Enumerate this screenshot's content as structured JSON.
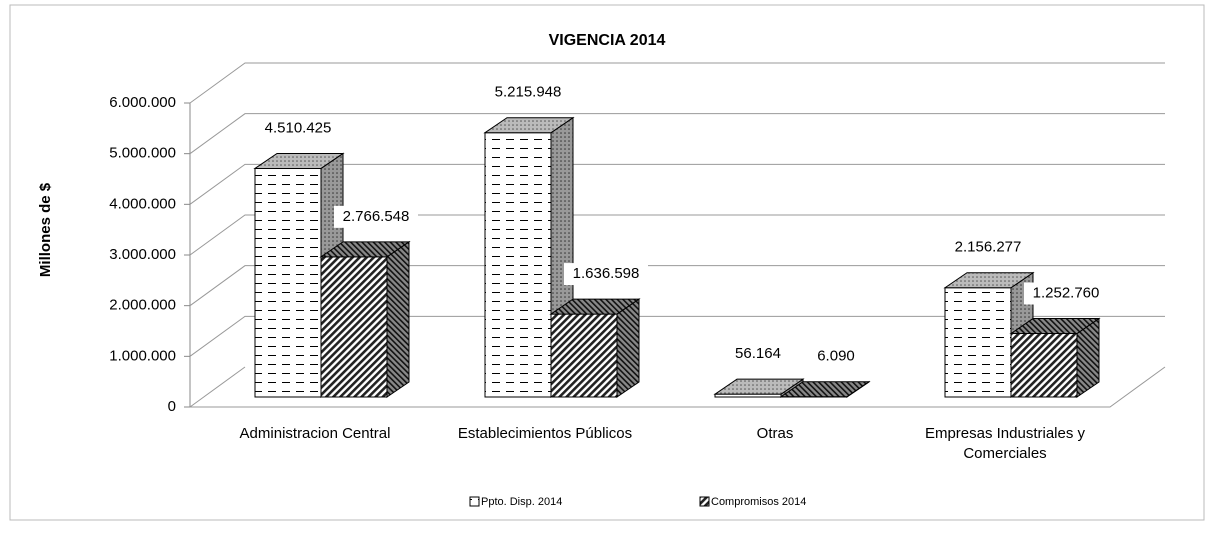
{
  "chart_data": {
    "type": "bar3d",
    "title": "VIGENCIA 2014",
    "y_label": "Millones de $",
    "categories": [
      "Administracion Central",
      "Establecimientos Públicos",
      "Otras",
      "Empresas Industriales y Comerciales"
    ],
    "series": [
      {
        "name": "Ppto. Disp. 2014",
        "color": "#ffffff",
        "values": [
          4510425,
          5215948,
          56164,
          2156277
        ],
        "value_labels": [
          "4.510.425",
          "5.215.948",
          "56.164",
          "2.156.277"
        ]
      },
      {
        "name": "Compromisos 2014",
        "color": "#404040",
        "values": [
          2766548,
          1636598,
          6090,
          1252760
        ],
        "value_labels": [
          "2.766.548",
          "1.636.598",
          "6.090",
          "1.252.760"
        ]
      }
    ],
    "ylim": [
      0,
      6000000
    ],
    "yticks": [
      0,
      {
        "value": 1000000,
        "label": "1.000.000"
      },
      {
        "value": 2000000,
        "label": "2.000.000"
      },
      {
        "value": 3000000,
        "label": "3.000.000"
      },
      {
        "value": 4000000,
        "label": "4.000.000"
      },
      {
        "value": 5000000,
        "label": "5.000.000"
      },
      {
        "value": 6000000,
        "label": "6.000.000"
      }
    ],
    "grid": true,
    "legend": "bottom"
  }
}
